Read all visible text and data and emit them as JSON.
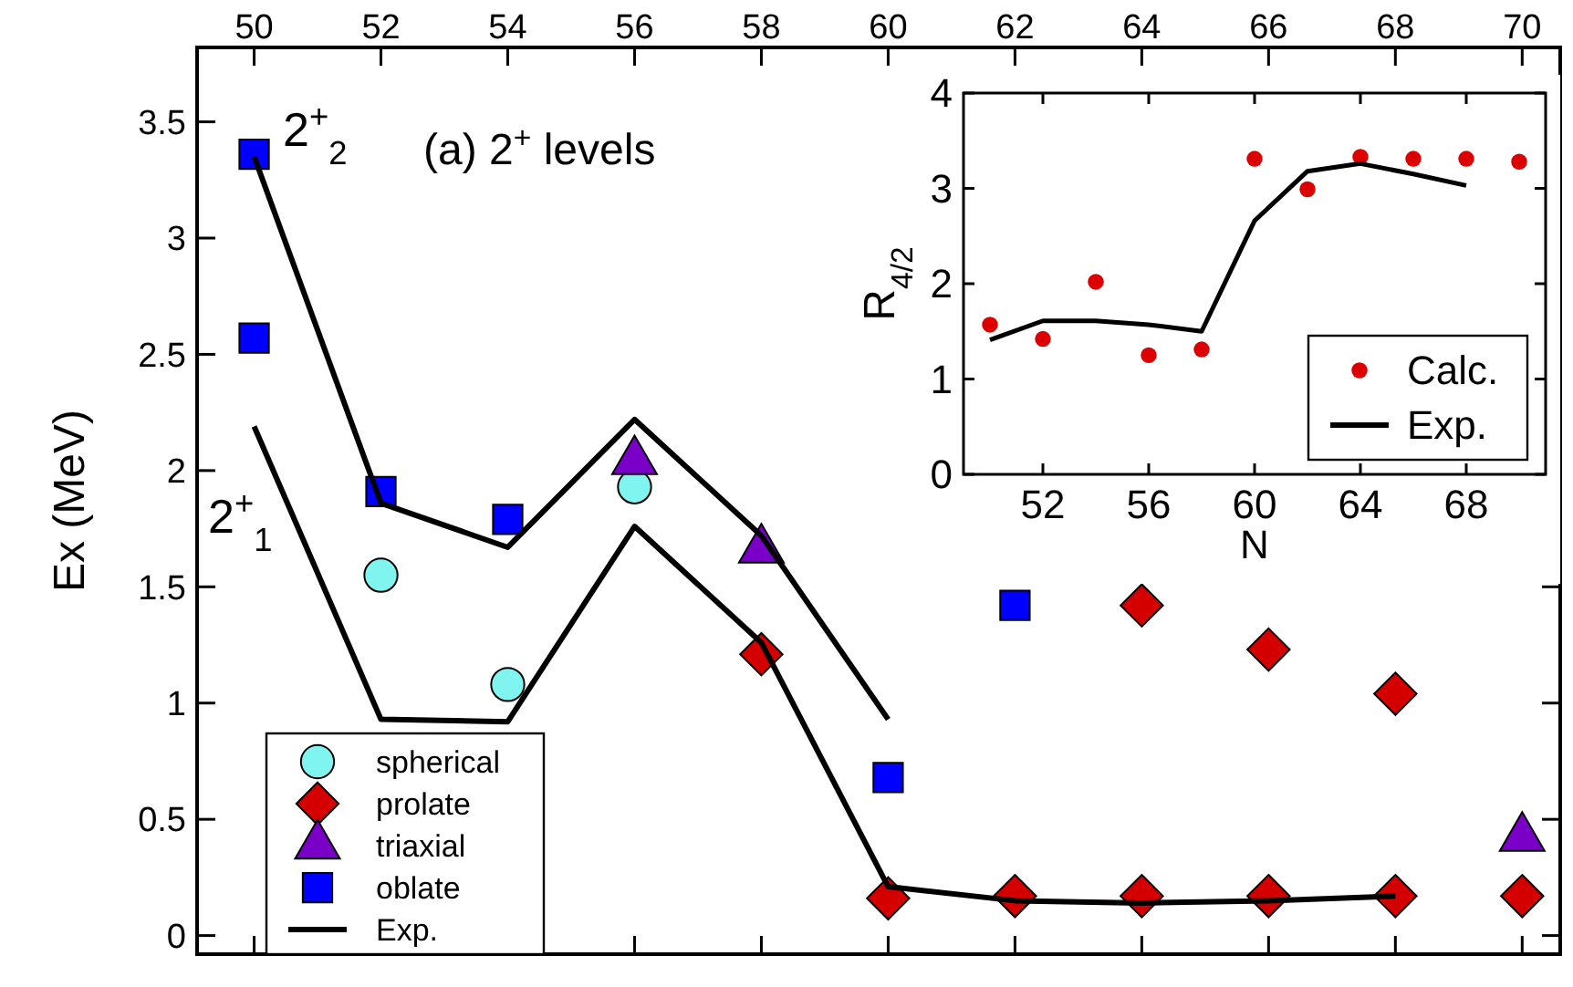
{
  "chart_data": [
    {
      "type": "scatter",
      "ylabel": "Ex (MeV)",
      "xlim": [
        49.1,
        70.6
      ],
      "ylim": [
        -0.08,
        3.82
      ],
      "xticks": [
        50,
        52,
        54,
        56,
        58,
        60,
        62,
        64,
        66,
        68,
        70
      ],
      "yticks": [
        0,
        0.5,
        1,
        1.5,
        2,
        2.5,
        3,
        3.5
      ],
      "legend": "bottom left",
      "grid": false,
      "annotations": [
        "2$^{+}$$_{2}$",
        "2$^{+}$$_{1}$",
        "(a) 2$^{+}$ levels"
      ],
      "series": [
        {
          "name": "spherical",
          "color": "#80f5f0",
          "marker": "circle",
          "x": [
            52,
            54,
            56
          ],
          "values": [
            1.55,
            1.08,
            1.93
          ]
        },
        {
          "name": "prolate",
          "color": "#d40000",
          "marker": "diamond",
          "x": [
            58,
            60,
            62,
            64,
            66,
            68,
            70,
            64,
            66,
            68
          ],
          "values": [
            1.21,
            0.16,
            0.17,
            0.17,
            0.17,
            0.17,
            0.17,
            1.42,
            1.23,
            1.04
          ]
        },
        {
          "name": "triaxial",
          "color": "#7a00c8",
          "marker": "triangle",
          "x": [
            56,
            58,
            70
          ],
          "values": [
            2.04,
            1.66,
            0.42
          ]
        },
        {
          "name": "oblate",
          "color": "#0000ff",
          "marker": "square",
          "x": [
            50,
            50,
            52,
            54,
            60,
            62
          ],
          "values": [
            3.36,
            2.57,
            1.91,
            1.79,
            0.68,
            1.42
          ]
        },
        {
          "type": "line",
          "name": "Exp.",
          "color": "#000000",
          "x": [
            50,
            52,
            54,
            56,
            58,
            60
          ],
          "values": [
            3.35,
            1.86,
            1.67,
            2.22,
            1.72,
            0.93
          ]
        },
        {
          "type": "line",
          "color": "#000000",
          "x": [
            50,
            52,
            54,
            56,
            58,
            60,
            62,
            64,
            66,
            68
          ],
          "values": [
            2.19,
            0.93,
            0.92,
            1.76,
            1.26,
            0.21,
            0.15,
            0.14,
            0.15,
            0.17
          ]
        }
      ]
    },
    {
      "type": "scatter",
      "xlabel": "N",
      "ylabel": "R$_{4/2}$",
      "xlim": [
        49,
        71
      ],
      "ylim": [
        0,
        4
      ],
      "xticks": [
        52,
        56,
        60,
        64,
        68
      ],
      "yticks": [
        0,
        1,
        2,
        3,
        4
      ],
      "legend": "bottom right",
      "grid": false,
      "series": [
        {
          "name": "Calc.",
          "color": "#dd0000",
          "marker": "circle",
          "x": [
            50,
            52,
            54,
            56,
            58,
            60,
            62,
            64,
            66,
            68,
            70
          ],
          "values": [
            1.57,
            1.42,
            2.02,
            1.25,
            1.31,
            3.31,
            2.99,
            3.33,
            3.31,
            3.31,
            3.28
          ]
        },
        {
          "type": "line",
          "name": "Exp.",
          "color": "#000000",
          "x": [
            50,
            52,
            54,
            56,
            58,
            60,
            62,
            64,
            66,
            68
          ],
          "values": [
            1.41,
            1.61,
            1.61,
            1.57,
            1.5,
            2.66,
            3.18,
            3.26,
            3.15,
            3.03
          ]
        }
      ]
    }
  ]
}
